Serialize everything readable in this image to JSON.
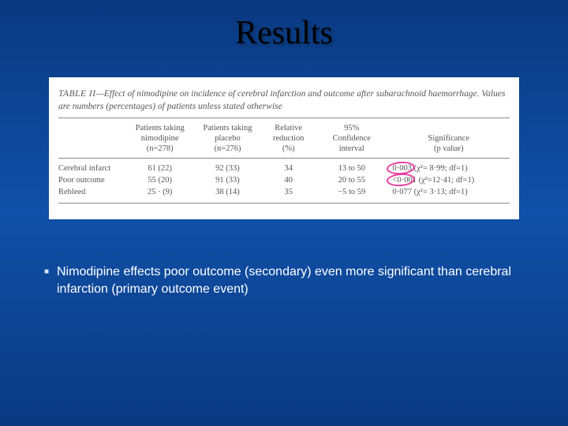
{
  "title": "Results",
  "table": {
    "caption_label": "TABLE II",
    "caption_text": "—Effect of nimodipine on incidence of cerebral infarction and outcome after subarachnoid haemorrhage. Values are numbers (percentages) of patients unless stated otherwise",
    "headers": {
      "rowlabel": "",
      "col_a_l1": "Patients taking",
      "col_a_l2": "nimodipine",
      "col_a_l3": "(n=278)",
      "col_b_l1": "Patients taking",
      "col_b_l2": "placebo",
      "col_b_l3": "(n=276)",
      "col_c_l1": "Relative",
      "col_c_l2": "reduction",
      "col_c_l3": "(%)",
      "col_d_l1": "95%",
      "col_d_l2": "Confidence",
      "col_d_l3": "interval",
      "col_e_l1": "Significance",
      "col_e_l2": "(p value)"
    },
    "rows": [
      {
        "label": "Cerebral infarct",
        "a": "61 (22)",
        "b": "92 (33)",
        "c": "34",
        "d": "13 to 50",
        "e": "0·003 (χ²= 8·99; df=1)",
        "circled": true
      },
      {
        "label": "Poor outcome",
        "a": "55 (20)",
        "b": "91 (33)",
        "c": "40",
        "d": "20 to 55",
        "e": "<0·001 (χ²=12·41; df=1)",
        "circled": true
      },
      {
        "label": "Rebleed",
        "a": "25 · (9)",
        "b": "38 (14)",
        "c": "35",
        "d": "−5 to 59",
        "e": "0·077 (χ²= 3·13; df=1)",
        "circled": false
      }
    ]
  },
  "caption": "Nimodipine effects poor outcome (secondary) even more significant than cerebral infarction (primary outcome event)",
  "colors": {
    "bg_top": "#0a3980",
    "bg_mid": "#1050a8",
    "table_bg": "#ffffff",
    "text_table": "#555555",
    "annot": "#e83ea0",
    "caption_text": "#ffffff"
  }
}
